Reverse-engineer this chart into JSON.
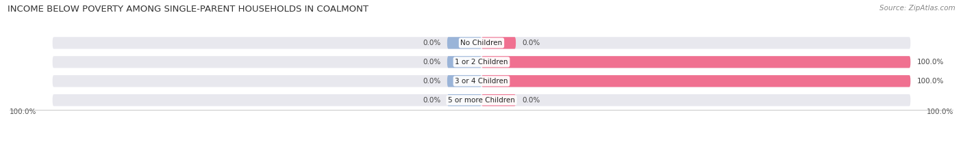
{
  "title": "INCOME BELOW POVERTY AMONG SINGLE-PARENT HOUSEHOLDS IN COALMONT",
  "source": "Source: ZipAtlas.com",
  "categories": [
    "No Children",
    "1 or 2 Children",
    "3 or 4 Children",
    "5 or more Children"
  ],
  "single_father": [
    0.0,
    0.0,
    0.0,
    0.0
  ],
  "single_mother": [
    0.0,
    100.0,
    100.0,
    0.0
  ],
  "father_color": "#9ab4d8",
  "mother_color": "#f07090",
  "bar_bg_color": "#e8e8ee",
  "bar_height": 0.62,
  "bar_gap": 0.38,
  "min_stub": 8.0,
  "title_fontsize": 9.5,
  "label_fontsize": 7.5,
  "cat_fontsize": 7.5,
  "legend_fontsize": 8.0,
  "source_fontsize": 7.5,
  "axis_label_left": "100.0%",
  "axis_label_right": "100.0%"
}
